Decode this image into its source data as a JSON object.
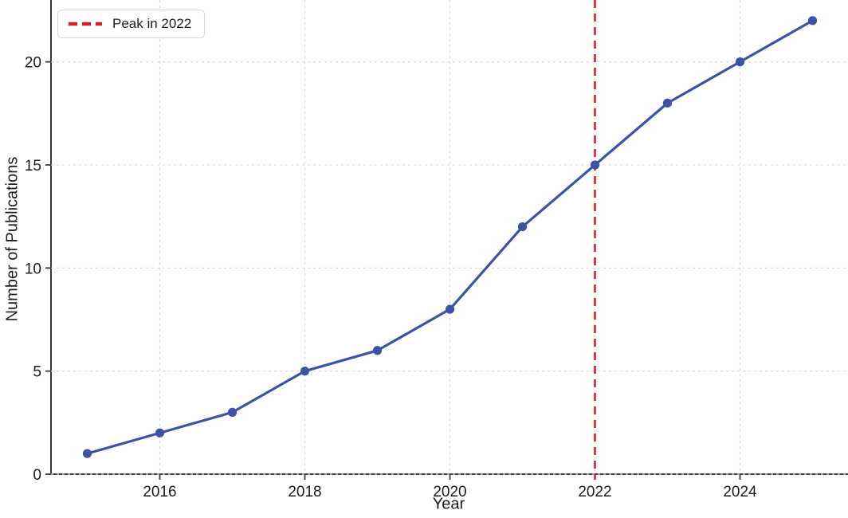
{
  "chart_data": {
    "type": "line",
    "title": "",
    "xlabel": "Year",
    "ylabel": "Number of Publications",
    "x": [
      2015,
      2016,
      2017,
      2018,
      2019,
      2020,
      2021,
      2022,
      2023,
      2024,
      2025
    ],
    "series": [
      {
        "name": "Publications",
        "values": [
          1,
          2,
          3,
          5,
          6,
          8,
          12,
          15,
          18,
          20,
          22
        ],
        "color": "#3a53a4",
        "marker": "circle",
        "line_width": 3.2,
        "marker_radius": 5.6
      }
    ],
    "xticks": [
      2016,
      2018,
      2020,
      2022,
      2024
    ],
    "yticks": [
      0,
      5,
      10,
      15,
      20
    ],
    "xlim": [
      2014.5,
      2025.5
    ],
    "ylim": [
      0,
      23
    ],
    "grid": true,
    "grid_color": "#d9d9d9",
    "spine_color": "#3a3a3a",
    "annotations": [
      {
        "type": "vline",
        "x": 2022,
        "color": "#dd2026",
        "style": "dashed"
      }
    ],
    "legend": {
      "position": "upper left",
      "entries": [
        {
          "label": "Peak in 2022",
          "color": "#dd2026",
          "style": "dashed"
        }
      ]
    }
  }
}
